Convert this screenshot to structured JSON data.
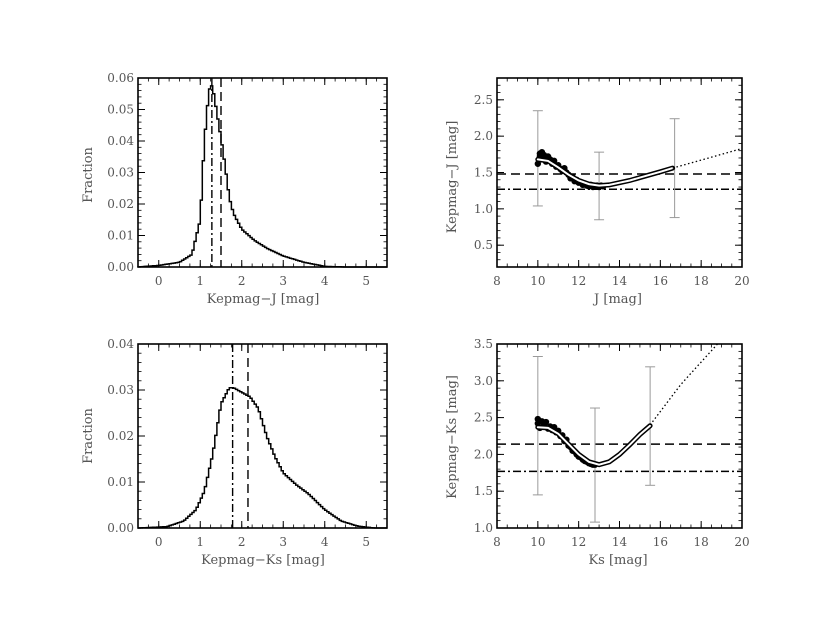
{
  "figure": {
    "background": "#ffffff",
    "ink": "#000000",
    "text_color": "#555555",
    "errorbar_color": "#9a9a9a"
  },
  "chart_data": [
    {
      "id": "hist_j",
      "type": "histogram",
      "title": "",
      "xlabel": "Kepmag−J [mag]",
      "ylabel": "Fraction",
      "xlim": [
        -0.5,
        5.5
      ],
      "ylim": [
        0,
        0.06
      ],
      "xticks": [
        0,
        1,
        2,
        3,
        4,
        5
      ],
      "yticks": [
        0.0,
        0.01,
        0.02,
        0.03,
        0.04,
        0.05,
        0.06
      ],
      "ytick_labels": [
        "0.00",
        "0.01",
        "0.02",
        "0.03",
        "0.04",
        "0.05",
        "0.06"
      ],
      "bin_width": 0.05,
      "curve": [
        [
          -0.5,
          0
        ],
        [
          0,
          0.0005
        ],
        [
          0.5,
          0.0015
        ],
        [
          0.8,
          0.004
        ],
        [
          1.0,
          0.015
        ],
        [
          1.1,
          0.04
        ],
        [
          1.2,
          0.055
        ],
        [
          1.25,
          0.058
        ],
        [
          1.3,
          0.057
        ],
        [
          1.4,
          0.049
        ],
        [
          1.5,
          0.041
        ],
        [
          1.6,
          0.032
        ],
        [
          1.7,
          0.022
        ],
        [
          1.8,
          0.017
        ],
        [
          2.0,
          0.012
        ],
        [
          2.3,
          0.0085
        ],
        [
          2.6,
          0.006
        ],
        [
          3.0,
          0.0035
        ],
        [
          3.5,
          0.0015
        ],
        [
          4.0,
          0.0002
        ],
        [
          4.5,
          0
        ],
        [
          5.5,
          0
        ]
      ],
      "vlines": [
        {
          "x": 1.28,
          "style": "dashdot"
        },
        {
          "x": 1.5,
          "style": "dashed"
        }
      ]
    },
    {
      "id": "color_j",
      "type": "scatter",
      "title": "",
      "xlabel": "J [mag]",
      "ylabel": "Kepmag−J [mag]",
      "xlim": [
        8,
        20
      ],
      "ylim": [
        0.2,
        2.8
      ],
      "xticks": [
        8,
        10,
        12,
        14,
        16,
        18,
        20
      ],
      "yticks": [
        0.5,
        1.0,
        1.5,
        2.0,
        2.5
      ],
      "ytick_labels": [
        "0.5",
        "1.0",
        "1.5",
        "2.0",
        "2.5"
      ],
      "points": [
        [
          10.0,
          1.62
        ],
        [
          10.1,
          1.72
        ],
        [
          10.1,
          1.76
        ],
        [
          10.2,
          1.68
        ],
        [
          10.2,
          1.78
        ],
        [
          10.3,
          1.74
        ],
        [
          10.4,
          1.65
        ],
        [
          10.5,
          1.72
        ],
        [
          10.6,
          1.68
        ],
        [
          10.7,
          1.62
        ],
        [
          10.8,
          1.66
        ],
        [
          10.9,
          1.58
        ],
        [
          11.0,
          1.6
        ],
        [
          11.1,
          1.55
        ],
        [
          11.2,
          1.52
        ],
        [
          11.3,
          1.56
        ],
        [
          11.4,
          1.5
        ],
        [
          11.5,
          1.47
        ],
        [
          11.6,
          1.42
        ],
        [
          11.7,
          1.44
        ],
        [
          11.8,
          1.38
        ],
        [
          11.9,
          1.4
        ],
        [
          12.0,
          1.36
        ],
        [
          12.1,
          1.37
        ],
        [
          12.2,
          1.33
        ],
        [
          12.3,
          1.35
        ],
        [
          12.4,
          1.32
        ],
        [
          12.5,
          1.31
        ],
        [
          12.6,
          1.33
        ],
        [
          12.7,
          1.3
        ],
        [
          12.8,
          1.31
        ],
        [
          12.9,
          1.32
        ],
        [
          13.0,
          1.3
        ],
        [
          13.1,
          1.32
        ],
        [
          13.2,
          1.31
        ]
      ],
      "fit_curve": [
        [
          10.0,
          1.68
        ],
        [
          10.5,
          1.66
        ],
        [
          11.0,
          1.57
        ],
        [
          11.5,
          1.47
        ],
        [
          12.0,
          1.39
        ],
        [
          12.5,
          1.34
        ],
        [
          13.0,
          1.32
        ],
        [
          13.5,
          1.33
        ],
        [
          14.0,
          1.36
        ],
        [
          14.5,
          1.39
        ],
        [
          15.0,
          1.43
        ],
        [
          15.5,
          1.47
        ],
        [
          16.0,
          1.51
        ],
        [
          16.6,
          1.56
        ]
      ],
      "extrapolation": [
        [
          16.6,
          1.56
        ],
        [
          18.0,
          1.67
        ],
        [
          20.0,
          1.83
        ]
      ],
      "error_bars": [
        {
          "x": 10.0,
          "y": 1.69,
          "low": 1.04,
          "high": 2.35
        },
        {
          "x": 13.0,
          "y": 1.32,
          "low": 0.85,
          "high": 1.78
        },
        {
          "x": 16.7,
          "y": 1.56,
          "low": 0.88,
          "high": 2.24
        }
      ],
      "hlines": [
        {
          "y": 1.48,
          "style": "dashed"
        },
        {
          "y": 1.27,
          "style": "dashdot"
        }
      ]
    },
    {
      "id": "hist_ks",
      "type": "histogram",
      "title": "",
      "xlabel": "Kepmag−Ks [mag]",
      "ylabel": "Fraction",
      "xlim": [
        -0.5,
        5.5
      ],
      "ylim": [
        0,
        0.04
      ],
      "xticks": [
        0,
        1,
        2,
        3,
        4,
        5
      ],
      "yticks": [
        0.0,
        0.01,
        0.02,
        0.03,
        0.04
      ],
      "ytick_labels": [
        "0.00",
        "0.01",
        "0.02",
        "0.03",
        "0.04"
      ],
      "bin_width": 0.05,
      "curve": [
        [
          -0.5,
          0
        ],
        [
          0.2,
          0.0003
        ],
        [
          0.6,
          0.0015
        ],
        [
          0.9,
          0.004
        ],
        [
          1.1,
          0.008
        ],
        [
          1.3,
          0.016
        ],
        [
          1.5,
          0.027
        ],
        [
          1.7,
          0.0305
        ],
        [
          1.8,
          0.0305
        ],
        [
          2.0,
          0.0295
        ],
        [
          2.2,
          0.0285
        ],
        [
          2.4,
          0.026
        ],
        [
          2.6,
          0.02
        ],
        [
          2.8,
          0.0155
        ],
        [
          3.0,
          0.012
        ],
        [
          3.3,
          0.0095
        ],
        [
          3.6,
          0.0075
        ],
        [
          4.0,
          0.004
        ],
        [
          4.4,
          0.0015
        ],
        [
          4.8,
          0.0004
        ],
        [
          5.2,
          0
        ],
        [
          5.5,
          0
        ]
      ],
      "vlines": [
        {
          "x": 1.78,
          "style": "dashdot"
        },
        {
          "x": 2.15,
          "style": "dashed"
        }
      ]
    },
    {
      "id": "color_ks",
      "type": "scatter",
      "title": "",
      "xlabel": "Ks [mag]",
      "ylabel": "Kepmag−Ks [mag]",
      "xlim": [
        8,
        20
      ],
      "ylim": [
        1.0,
        3.5
      ],
      "xticks": [
        8,
        10,
        12,
        14,
        16,
        18,
        20
      ],
      "yticks": [
        1.0,
        1.5,
        2.0,
        2.5,
        3.0,
        3.5
      ],
      "ytick_labels": [
        "1.0",
        "1.5",
        "2.0",
        "2.5",
        "3.0",
        "3.5"
      ],
      "points": [
        [
          10.0,
          2.42
        ],
        [
          10.0,
          2.48
        ],
        [
          10.1,
          2.36
        ],
        [
          10.2,
          2.45
        ],
        [
          10.3,
          2.4
        ],
        [
          10.4,
          2.44
        ],
        [
          10.5,
          2.35
        ],
        [
          10.6,
          2.38
        ],
        [
          10.7,
          2.33
        ],
        [
          10.8,
          2.37
        ],
        [
          10.9,
          2.3
        ],
        [
          11.0,
          2.32
        ],
        [
          11.1,
          2.25
        ],
        [
          11.2,
          2.26
        ],
        [
          11.3,
          2.18
        ],
        [
          11.4,
          2.2
        ],
        [
          11.5,
          2.12
        ],
        [
          11.6,
          2.1
        ],
        [
          11.7,
          2.05
        ],
        [
          11.8,
          2.04
        ],
        [
          11.9,
          2.0
        ],
        [
          12.0,
          1.97
        ],
        [
          12.1,
          1.96
        ],
        [
          12.2,
          1.93
        ],
        [
          12.3,
          1.91
        ],
        [
          12.4,
          1.9
        ],
        [
          12.5,
          1.88
        ],
        [
          12.6,
          1.87
        ],
        [
          12.7,
          1.86
        ],
        [
          12.8,
          1.86
        ]
      ],
      "fit_curve": [
        [
          10.0,
          2.37
        ],
        [
          10.5,
          2.36
        ],
        [
          11.0,
          2.28
        ],
        [
          11.5,
          2.14
        ],
        [
          12.0,
          2.0
        ],
        [
          12.5,
          1.9
        ],
        [
          13.0,
          1.86
        ],
        [
          13.5,
          1.9
        ],
        [
          14.0,
          2.0
        ],
        [
          14.5,
          2.13
        ],
        [
          15.0,
          2.27
        ],
        [
          15.5,
          2.39
        ]
      ],
      "extrapolation": [
        [
          15.5,
          2.4
        ],
        [
          17.0,
          2.95
        ],
        [
          18.8,
          3.55
        ]
      ],
      "error_bars": [
        {
          "x": 10.0,
          "y": 2.4,
          "low": 1.45,
          "high": 3.33
        },
        {
          "x": 12.8,
          "y": 1.86,
          "low": 1.08,
          "high": 2.63
        },
        {
          "x": 15.5,
          "y": 2.39,
          "low": 1.58,
          "high": 3.19
        }
      ],
      "hlines": [
        {
          "y": 2.14,
          "style": "dashed"
        },
        {
          "y": 1.77,
          "style": "dashdot"
        }
      ]
    }
  ]
}
